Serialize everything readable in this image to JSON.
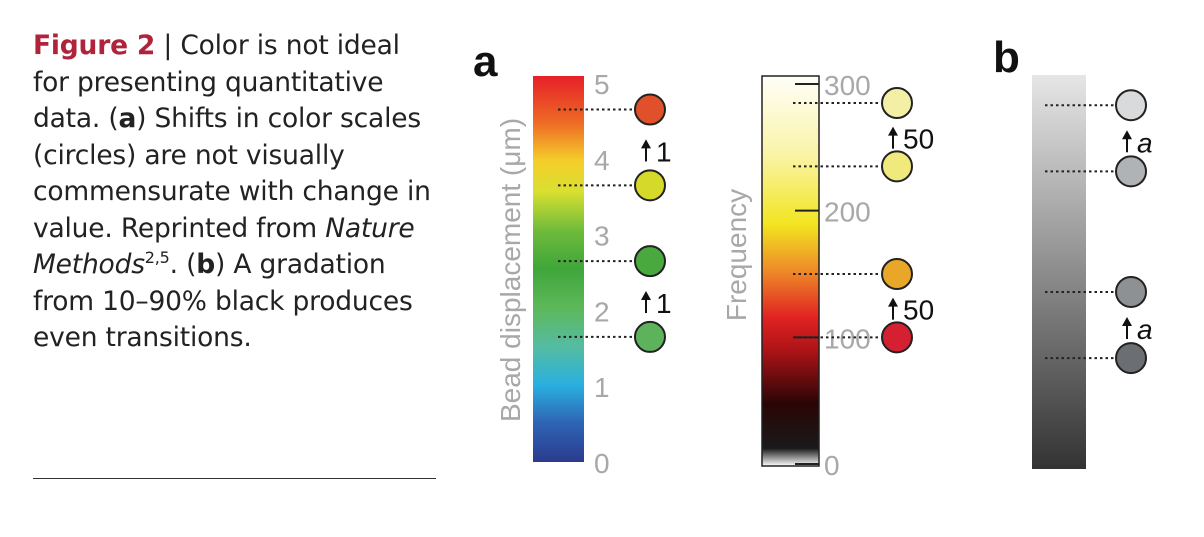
{
  "caption": {
    "figure_label": "Figure 2",
    "separator": " | ",
    "text_1": "Color is not ideal for presenting quantitative data. (",
    "a_label": "a",
    "text_2": ") Shifts in color scales (circles) are not visually commensurate with change in value. Reprinted from ",
    "journal_italic": "Nature Methods",
    "superscript": "2,5",
    "text_3": ". (",
    "b_label": "b",
    "text_4": ") A gradation from 10–90% black produces even transitions."
  },
  "panel_a": {
    "label": "a",
    "scale1": {
      "axis_label": "Bead displacement (μm)",
      "ticks": [
        "0",
        "1",
        "2",
        "3",
        "4",
        "5"
      ],
      "circles": [
        {
          "value": 1.65,
          "color": "#5cb35c"
        },
        {
          "value": 2.65,
          "color": "#49a83e"
        },
        {
          "value": 3.65,
          "color": "#d5d92a"
        },
        {
          "value": 4.65,
          "color": "#e0502a"
        }
      ],
      "annotations": [
        "1",
        "1"
      ]
    },
    "scale2": {
      "axis_label": "Frequency",
      "ticks": [
        "0",
        "100",
        "200",
        "300"
      ],
      "circles": [
        {
          "value": 100,
          "color": "#d42030"
        },
        {
          "value": 150,
          "color": "#e9a72a"
        },
        {
          "value": 235,
          "color": "#f0e97c"
        },
        {
          "value": 285,
          "color": "#f3f0a5"
        }
      ],
      "annotations": [
        "50",
        "50"
      ]
    }
  },
  "panel_b": {
    "label": "b",
    "circles": [
      {
        "value": 0.28,
        "color": "#6b6e72"
      },
      {
        "value": 0.45,
        "color": "#8e9194"
      },
      {
        "value": 0.76,
        "color": "#b0b3b6"
      },
      {
        "value": 0.93,
        "color": "#d8dadc"
      }
    ],
    "annotations": [
      "a",
      "a"
    ]
  }
}
